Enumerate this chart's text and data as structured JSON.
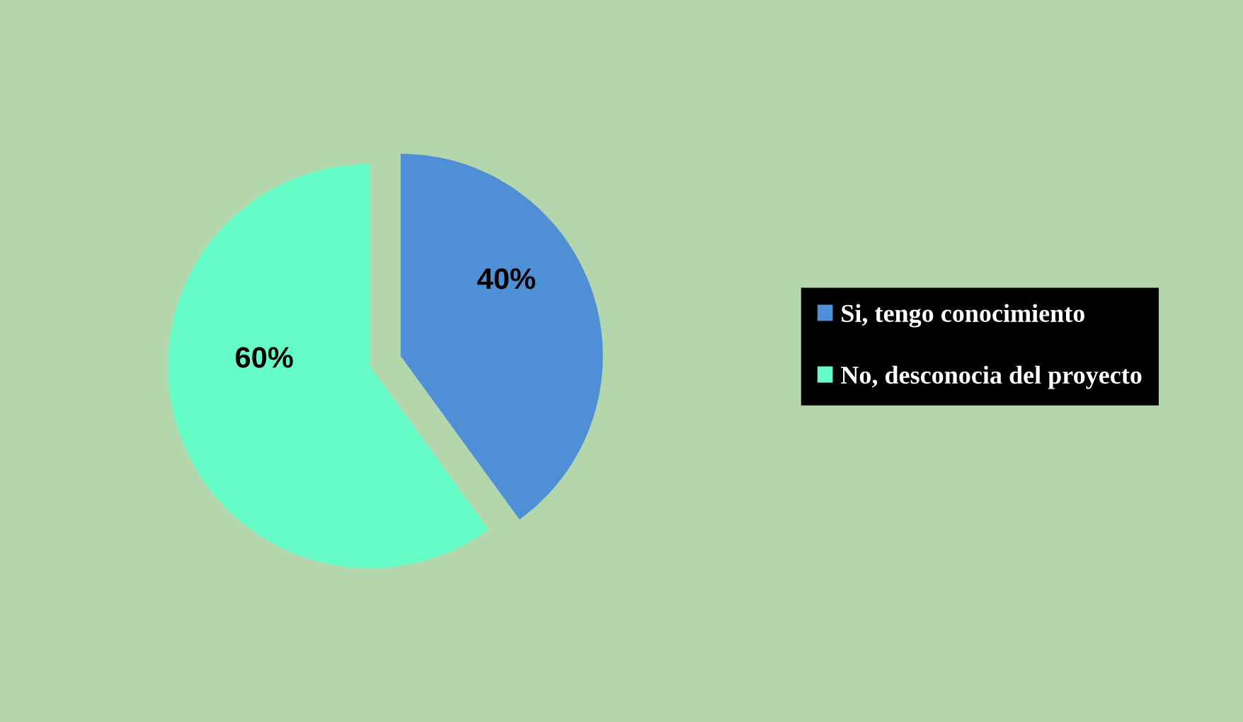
{
  "chart_data": {
    "type": "pie",
    "categories": [
      "Si, tengo conocimiento",
      "No, desconocia del proyecto"
    ],
    "values": [
      40,
      60
    ],
    "colors": [
      "#4f8fd6",
      "#66fcc8"
    ],
    "value_labels": [
      "40%",
      "60%"
    ],
    "legend": "right"
  }
}
